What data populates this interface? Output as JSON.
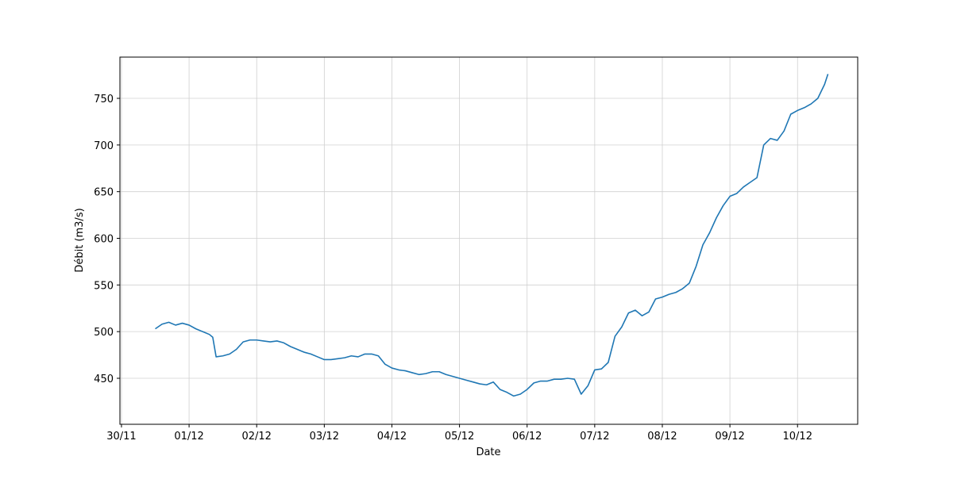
{
  "chart_data": {
    "type": "line",
    "xlabel": "Date",
    "ylabel": "Débit (m3/s)",
    "x": [
      0.5,
      0.6,
      0.7,
      0.8,
      0.9,
      1.0,
      1.1,
      1.2,
      1.3,
      1.35,
      1.4,
      1.5,
      1.6,
      1.7,
      1.8,
      1.9,
      2.0,
      2.1,
      2.2,
      2.3,
      2.4,
      2.5,
      2.6,
      2.7,
      2.8,
      2.9,
      3.0,
      3.1,
      3.2,
      3.3,
      3.4,
      3.5,
      3.6,
      3.7,
      3.8,
      3.9,
      4.0,
      4.1,
      4.2,
      4.3,
      4.4,
      4.5,
      4.6,
      4.7,
      4.8,
      4.9,
      5.0,
      5.1,
      5.2,
      5.3,
      5.4,
      5.5,
      5.6,
      5.7,
      5.8,
      5.9,
      6.0,
      6.1,
      6.2,
      6.3,
      6.4,
      6.5,
      6.6,
      6.7,
      6.8,
      6.9,
      7.0,
      7.1,
      7.2,
      7.3,
      7.4,
      7.5,
      7.6,
      7.7,
      7.8,
      7.9,
      8.0,
      8.1,
      8.2,
      8.3,
      8.4,
      8.5,
      8.6,
      8.7,
      8.8,
      8.9,
      9.0,
      9.1,
      9.2,
      9.3,
      9.4,
      9.5,
      9.6,
      9.7,
      9.8,
      9.9,
      10.0,
      10.1,
      10.2,
      10.3,
      10.4,
      10.45
    ],
    "series": [
      {
        "color": "#1f77b4",
        "values": [
          503,
          508,
          510,
          507,
          509,
          507,
          503,
          500,
          497,
          494,
          473,
          474,
          476,
          481,
          489,
          491,
          491,
          490,
          489,
          490,
          488,
          484,
          481,
          478,
          476,
          473,
          470,
          470,
          471,
          472,
          474,
          473,
          476,
          476,
          474,
          465,
          461,
          459,
          458,
          456,
          454,
          455,
          457,
          457,
          454,
          452,
          450,
          448,
          446,
          444,
          443,
          446,
          438,
          435,
          431,
          433,
          438,
          445,
          447,
          447,
          449,
          449,
          450,
          449,
          433,
          442,
          459,
          460,
          467,
          495,
          505,
          520,
          523,
          517,
          521,
          535,
          537,
          540,
          542,
          546,
          552,
          570,
          593,
          606,
          622,
          635,
          645,
          648,
          655,
          660,
          665,
          700,
          707,
          705,
          715,
          733,
          737,
          740,
          744,
          750,
          765,
          776
        ]
      }
    ],
    "xlim": [
      -0.023,
      10.89
    ],
    "xticks": [
      {
        "value": 0,
        "label": "30/11"
      },
      {
        "value": 1,
        "label": "01/12"
      },
      {
        "value": 2,
        "label": "02/12"
      },
      {
        "value": 3,
        "label": "03/12"
      },
      {
        "value": 4,
        "label": "04/12"
      },
      {
        "value": 5,
        "label": "05/12"
      },
      {
        "value": 6,
        "label": "06/12"
      },
      {
        "value": 7,
        "label": "07/12"
      },
      {
        "value": 8,
        "label": "08/12"
      },
      {
        "value": 9,
        "label": "09/12"
      },
      {
        "value": 10,
        "label": "10/12"
      }
    ],
    "ylim": [
      400.7,
      794.2
    ],
    "yticks": [
      450,
      500,
      550,
      600,
      650,
      700,
      750
    ],
    "grid": true
  }
}
